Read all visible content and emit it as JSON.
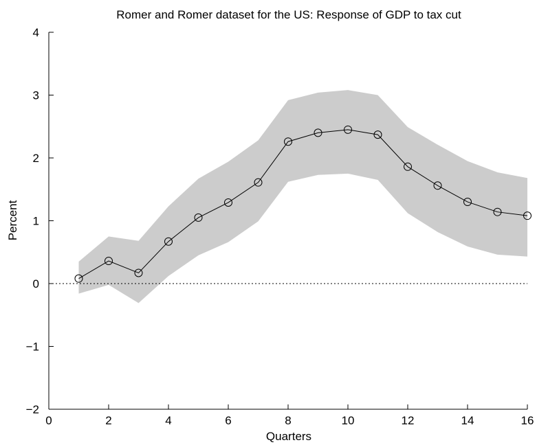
{
  "chart_data": {
    "type": "line",
    "title": "Romer and Romer dataset for the US: Response of GDP to tax cut",
    "x_label": "Quarters",
    "y_label": "Percent",
    "x": [
      1,
      2,
      3,
      4,
      5,
      6,
      7,
      8,
      9,
      10,
      11,
      12,
      13,
      14,
      15,
      16
    ],
    "values": [
      0.08,
      0.36,
      0.17,
      0.67,
      1.05,
      1.29,
      1.61,
      2.26,
      2.4,
      2.45,
      2.37,
      1.86,
      1.56,
      1.3,
      1.14,
      1.08
    ],
    "upper": [
      0.35,
      0.75,
      0.68,
      1.23,
      1.67,
      1.94,
      2.28,
      2.92,
      3.04,
      3.08,
      3.0,
      2.49,
      2.21,
      1.95,
      1.77,
      1.68
    ],
    "lower": [
      -0.16,
      -0.02,
      -0.31,
      0.12,
      0.45,
      0.66,
      0.99,
      1.62,
      1.73,
      1.75,
      1.65,
      1.12,
      0.82,
      0.59,
      0.46,
      0.43
    ],
    "color": "#000000",
    "band_color": "#cccccc",
    "zero_line": 0,
    "xlim": [
      0,
      16
    ],
    "xticks": [
      0,
      2,
      4,
      6,
      8,
      10,
      12,
      14,
      16
    ],
    "ylim": [
      -2,
      4
    ],
    "yticks": [
      {
        "value": -2,
        "label": "−2"
      },
      {
        "value": -1,
        "label": "−1"
      },
      0,
      1,
      2,
      3,
      4
    ]
  }
}
